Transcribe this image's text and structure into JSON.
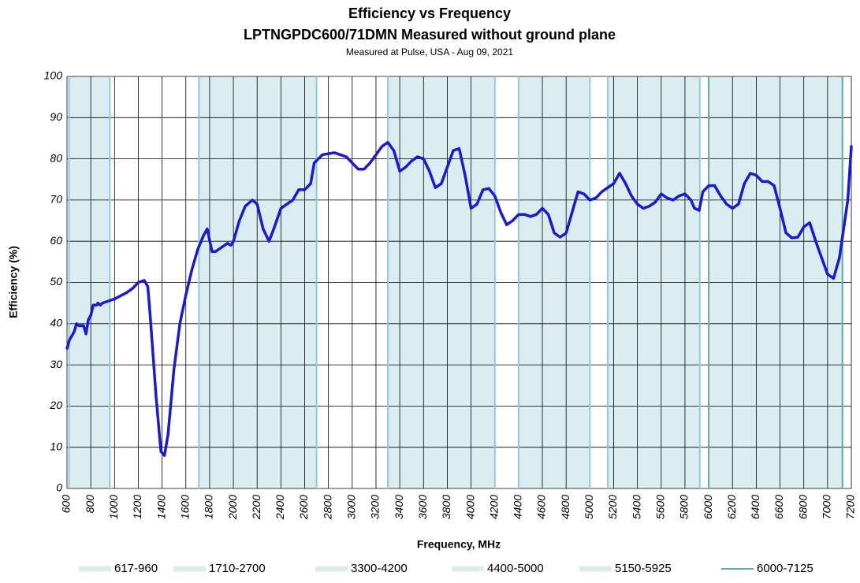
{
  "chart_data": {
    "type": "line",
    "title": "Efficiency vs Frequency",
    "subtitle": "LPTNGPDC600/71DMN Measured without ground plane",
    "caption": "Measured at Pulse, USA - Aug 09, 2021",
    "x_label": "Frequency, MHz",
    "y_label": "Efficiency (%)",
    "xlim": [
      600,
      7200
    ],
    "ylim": [
      0,
      100
    ],
    "xticks": [
      600,
      800,
      1000,
      1200,
      1400,
      1600,
      1800,
      2000,
      2200,
      2400,
      2600,
      2800,
      3000,
      3200,
      3400,
      3600,
      3800,
      4000,
      4200,
      4400,
      4600,
      4800,
      5000,
      5200,
      5400,
      5600,
      5800,
      6000,
      6200,
      6400,
      6600,
      6800,
      7000,
      7200
    ],
    "yticks": [
      0,
      10,
      20,
      30,
      40,
      50,
      60,
      70,
      80,
      90,
      100
    ],
    "grid": true,
    "bands": [
      {
        "name": "617-960",
        "start": 617,
        "end": 960,
        "color": "#dcedf1",
        "edge": "#8fcad6"
      },
      {
        "name": "1710-2700",
        "start": 1710,
        "end": 2700,
        "color": "#dcedf1",
        "edge": "#8fcad6"
      },
      {
        "name": "3300-4200",
        "start": 3300,
        "end": 4200,
        "color": "#dcedf1",
        "edge": "#8fcad6"
      },
      {
        "name": "4400-5000",
        "start": 4400,
        "end": 5000,
        "color": "#dcedf1",
        "edge": "#8fcad6"
      },
      {
        "name": "5150-5925",
        "start": 5150,
        "end": 5925,
        "color": "#dcedf1",
        "edge": "#8fcad6"
      },
      {
        "name": "6000-7125",
        "start": 6000,
        "end": 7125,
        "color": "#dcedf1",
        "edge": "#5fa8b0"
      }
    ],
    "x": [
      600,
      620,
      660,
      680,
      700,
      740,
      760,
      780,
      800,
      820,
      850,
      860,
      880,
      900,
      950,
      1000,
      1100,
      1150,
      1200,
      1250,
      1280,
      1300,
      1350,
      1390,
      1420,
      1450,
      1500,
      1550,
      1600,
      1650,
      1700,
      1750,
      1780,
      1820,
      1850,
      1900,
      1950,
      1980,
      2000,
      2050,
      2100,
      2160,
      2200,
      2250,
      2300,
      2340,
      2400,
      2450,
      2500,
      2550,
      2600,
      2650,
      2680,
      2750,
      2850,
      2950,
      3000,
      3050,
      3100,
      3150,
      3200,
      3250,
      3300,
      3350,
      3400,
      3450,
      3500,
      3550,
      3600,
      3650,
      3700,
      3750,
      3800,
      3850,
      3900,
      3950,
      4000,
      4050,
      4100,
      4150,
      4200,
      4250,
      4300,
      4350,
      4400,
      4450,
      4500,
      4550,
      4600,
      4650,
      4700,
      4750,
      4800,
      4850,
      4900,
      4950,
      5000,
      5050,
      5100,
      5150,
      5200,
      5250,
      5300,
      5350,
      5400,
      5450,
      5500,
      5550,
      5600,
      5650,
      5700,
      5750,
      5800,
      5850,
      5880,
      5920,
      5950,
      6000,
      6050,
      6100,
      6150,
      6200,
      6250,
      6300,
      6350,
      6400,
      6450,
      6500,
      6550,
      6600,
      6650,
      6700,
      6750,
      6800,
      6850,
      6900,
      6950,
      7000,
      7050,
      7100,
      7150,
      7170,
      7200
    ],
    "series": [
      {
        "color": "#1a1ad6",
        "values": [
          34,
          36,
          38,
          40,
          39.5,
          39.5,
          37.5,
          41,
          42,
          44.5,
          44.5,
          45,
          44.5,
          45,
          45.5,
          46,
          47.5,
          48.5,
          50,
          50.5,
          49,
          42,
          22,
          9,
          8,
          13,
          29,
          40,
          47,
          53,
          58,
          61.5,
          63,
          57.5,
          57.5,
          58.5,
          59.5,
          59,
          60,
          65,
          68.5,
          70,
          69,
          63,
          60,
          63,
          68,
          69,
          70,
          72.5,
          72.5,
          74,
          79,
          81,
          81.5,
          80.5,
          79,
          77.5,
          77.5,
          79,
          81,
          83,
          84,
          82,
          77,
          78,
          79.5,
          80.5,
          80,
          77,
          73,
          74,
          78,
          82,
          82.5,
          76,
          68,
          69,
          72.5,
          72.8,
          71,
          67,
          64,
          65,
          66.5,
          66.5,
          66,
          66.5,
          68,
          66.5,
          62,
          61,
          62,
          67,
          72,
          71.5,
          70,
          70.5,
          72,
          73,
          74,
          76.5,
          74,
          71,
          69,
          68,
          68.5,
          69.5,
          71.5,
          70.5,
          70,
          71,
          71.5,
          70,
          68,
          67.5,
          72,
          73.5,
          73.5,
          71,
          69,
          68,
          69,
          74,
          76.5,
          76,
          74.5,
          74.5,
          73.5,
          68,
          62,
          60.8,
          61,
          63.5,
          64.5,
          60,
          56,
          52,
          51,
          56,
          66,
          70,
          83
        ]
      }
    ]
  }
}
